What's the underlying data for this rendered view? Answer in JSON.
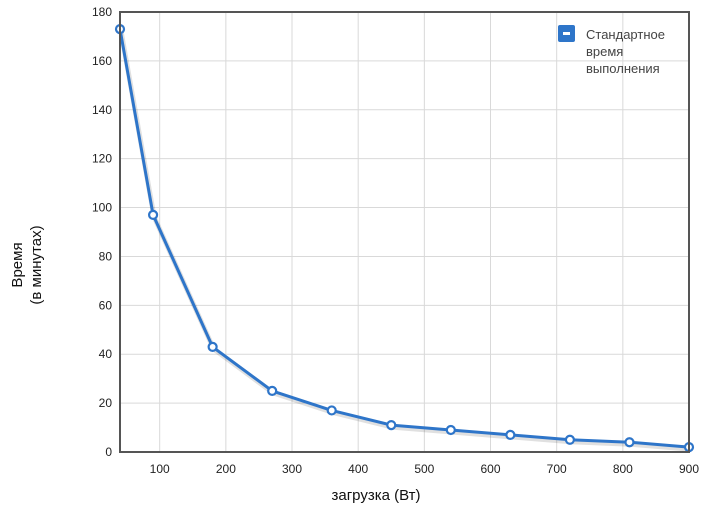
{
  "chart_data": {
    "type": "line",
    "title": "",
    "xlabel": "загрузка (Вт)",
    "ylabel": [
      "Время",
      "(в минутах)"
    ],
    "xlim": [
      40,
      900
    ],
    "ylim": [
      0,
      180
    ],
    "x_ticks": [
      100,
      200,
      300,
      400,
      500,
      600,
      700,
      800,
      900
    ],
    "y_ticks": [
      0,
      20,
      40,
      60,
      80,
      100,
      120,
      140,
      160,
      180
    ],
    "grid": true,
    "legend_position": "top-right",
    "series": [
      {
        "name": [
          "Стандартное",
          "время",
          "выполнения"
        ],
        "color": "#2e75c9",
        "x": [
          40,
          90,
          180,
          270,
          360,
          450,
          540,
          630,
          720,
          810,
          900
        ],
        "y": [
          173,
          97,
          43,
          25,
          17,
          11,
          9,
          7,
          5,
          4,
          2
        ]
      }
    ],
    "colors": {
      "frame": "#555555",
      "grid": "#d9d9d9",
      "line": "#2e75c9",
      "marker_fill": "#ffffff"
    }
  }
}
